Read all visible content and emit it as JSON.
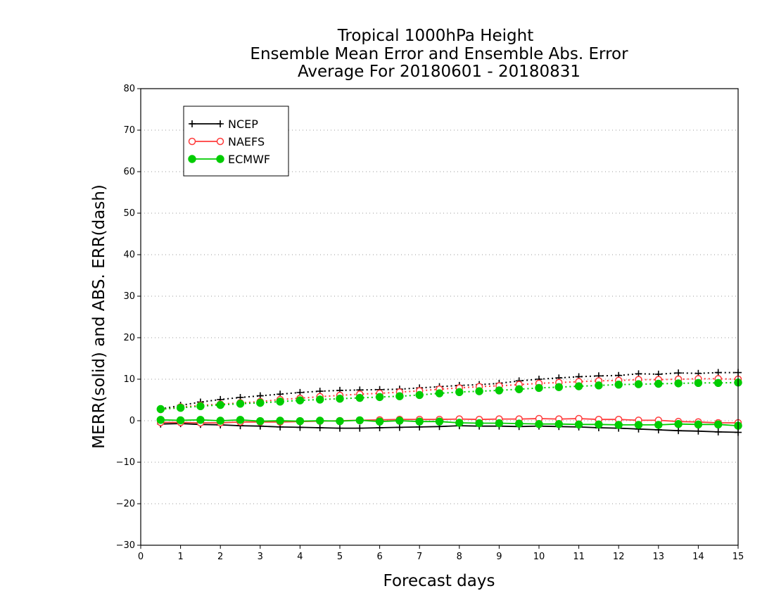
{
  "chart_data": {
    "type": "line",
    "title": [
      "Tropical 1000hPa Height",
      "Ensemble Mean Error and Ensemble Abs. Error",
      "Average For 20180601 - 20180831"
    ],
    "xlabel": "Forecast days",
    "ylabel": "MERR(solid) and ABS. ERR(dash)",
    "xlim": [
      0,
      15
    ],
    "ylim": [
      -30,
      80
    ],
    "xticks": [
      0,
      1,
      2,
      3,
      4,
      5,
      6,
      7,
      8,
      9,
      10,
      11,
      12,
      13,
      14,
      15
    ],
    "yticks": [
      -30,
      -20,
      -10,
      0,
      10,
      20,
      30,
      40,
      50,
      60,
      70,
      80
    ],
    "grid": "horizontal dotted",
    "legend_position": "top-left",
    "x": [
      0.5,
      1.0,
      1.5,
      2.0,
      2.5,
      3.0,
      3.5,
      4.0,
      4.5,
      5.0,
      5.5,
      6.0,
      6.5,
      7.0,
      7.5,
      8.0,
      8.5,
      9.0,
      9.5,
      10.0,
      10.5,
      11.0,
      11.5,
      12.0,
      12.5,
      13.0,
      13.5,
      14.0,
      14.5,
      15.0
    ],
    "series": [
      {
        "name": "NCEP",
        "color": "#000000",
        "marker": "plus",
        "mean_error": [
          -0.8,
          -0.7,
          -0.9,
          -1.0,
          -1.2,
          -1.3,
          -1.5,
          -1.6,
          -1.7,
          -1.8,
          -1.8,
          -1.7,
          -1.6,
          -1.5,
          -1.4,
          -1.2,
          -1.3,
          -1.3,
          -1.4,
          -1.3,
          -1.4,
          -1.5,
          -1.7,
          -1.8,
          -2.0,
          -2.2,
          -2.4,
          -2.5,
          -2.7,
          -2.8
        ],
        "abs_error": [
          2.8,
          3.7,
          4.5,
          5.1,
          5.6,
          6.0,
          6.4,
          6.8,
          7.1,
          7.3,
          7.4,
          7.5,
          7.6,
          7.9,
          8.2,
          8.5,
          8.7,
          9.0,
          9.6,
          10.0,
          10.3,
          10.6,
          10.8,
          10.9,
          11.3,
          11.2,
          11.5,
          11.4,
          11.6,
          11.6
        ]
      },
      {
        "name": "NAEFS",
        "color": "#ff3b3b",
        "marker": "open-circle",
        "mean_error": [
          -0.4,
          -0.4,
          -0.5,
          -0.5,
          -0.3,
          -0.3,
          -0.3,
          -0.2,
          -0.1,
          0.0,
          0.1,
          0.2,
          0.3,
          0.3,
          0.3,
          0.4,
          0.3,
          0.4,
          0.4,
          0.5,
          0.4,
          0.5,
          0.3,
          0.3,
          0.1,
          0.1,
          -0.2,
          -0.3,
          -0.5,
          -0.5
        ],
        "abs_error": [
          2.7,
          3.3,
          3.7,
          4.0,
          4.3,
          4.6,
          5.1,
          5.4,
          5.8,
          6.1,
          6.4,
          6.6,
          6.9,
          7.2,
          7.6,
          7.9,
          8.2,
          8.4,
          8.7,
          9.0,
          9.2,
          9.4,
          9.6,
          9.7,
          9.9,
          9.9,
          10.0,
          10.1,
          10.1,
          10.0
        ]
      },
      {
        "name": "ECMWF",
        "color": "#00cc00",
        "marker": "filled-circle",
        "mean_error": [
          0.2,
          0.1,
          0.2,
          0.0,
          0.2,
          -0.1,
          0.0,
          -0.1,
          0.0,
          -0.1,
          0.1,
          -0.2,
          0.0,
          -0.2,
          -0.2,
          -0.5,
          -0.6,
          -0.6,
          -0.7,
          -0.8,
          -0.8,
          -0.9,
          -0.9,
          -1.0,
          -1.0,
          -1.0,
          -0.8,
          -0.9,
          -0.9,
          -1.2
        ],
        "abs_error": [
          2.8,
          3.1,
          3.5,
          3.8,
          4.1,
          4.3,
          4.6,
          4.9,
          5.1,
          5.3,
          5.5,
          5.7,
          5.9,
          6.2,
          6.6,
          6.9,
          7.1,
          7.3,
          7.6,
          7.9,
          8.1,
          8.3,
          8.5,
          8.7,
          8.8,
          8.9,
          9.0,
          9.1,
          9.1,
          9.2
        ]
      }
    ]
  }
}
